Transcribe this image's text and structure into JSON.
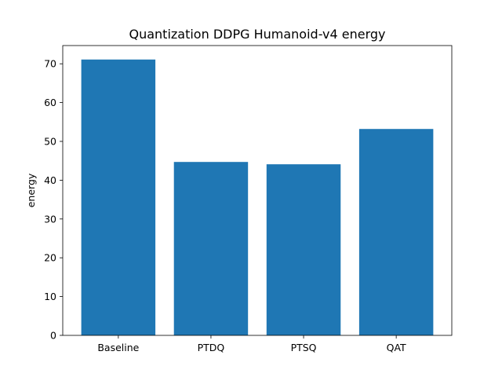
{
  "chart_data": {
    "type": "bar",
    "title": "Quantization DDPG Humanoid-v4 energy",
    "xlabel": "",
    "ylabel": "energy",
    "categories": [
      "Baseline",
      "PTDQ",
      "PTSQ",
      "QAT"
    ],
    "values": [
      71.1,
      44.7,
      44.1,
      53.2
    ],
    "ylim": [
      0,
      74.7
    ],
    "yticks": [
      0,
      10,
      20,
      30,
      40,
      50,
      60,
      70
    ],
    "grid": false,
    "legend": "none",
    "bar_color": "#1f77b4"
  }
}
